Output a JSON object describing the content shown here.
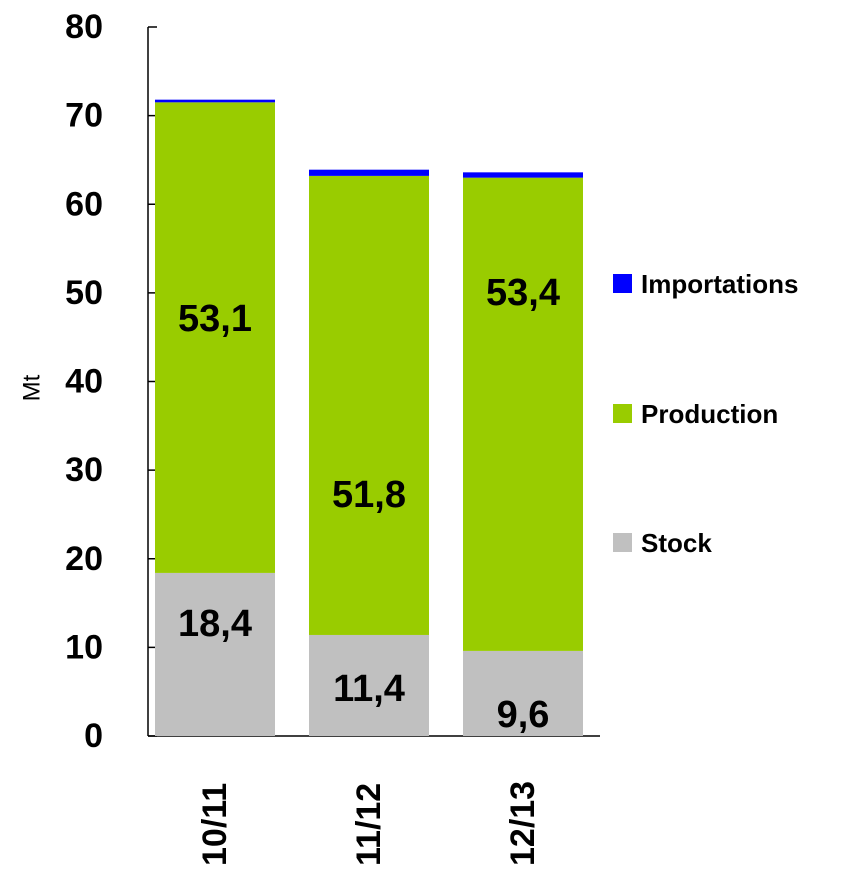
{
  "chart_data": {
    "type": "bar",
    "stacked": true,
    "ylabel": "Mt",
    "xlabel": "",
    "title": "",
    "ylim": [
      0,
      80
    ],
    "yticks": [
      0,
      10,
      20,
      30,
      40,
      50,
      60,
      70,
      80
    ],
    "grid": false,
    "legend": "right",
    "categories": [
      "10/11",
      "11/12",
      "12/13"
    ],
    "series": [
      {
        "name": "Stock",
        "values": [
          18.4,
          11.4,
          9.6
        ],
        "labels": [
          "18,4",
          "11,4",
          "9,6"
        ],
        "color": "#c0c0c0"
      },
      {
        "name": "Production",
        "values": [
          53.1,
          51.8,
          53.4
        ],
        "labels": [
          "53,1",
          "51,8",
          "53,4"
        ],
        "color": "#99cc00"
      },
      {
        "name": "Importations",
        "values": [
          0.3,
          0.7,
          0.6
        ],
        "labels": [
          "",
          "",
          ""
        ],
        "color": "#0000ff"
      }
    ],
    "legend_order": [
      "Importations",
      "Production",
      "Stock"
    ]
  }
}
